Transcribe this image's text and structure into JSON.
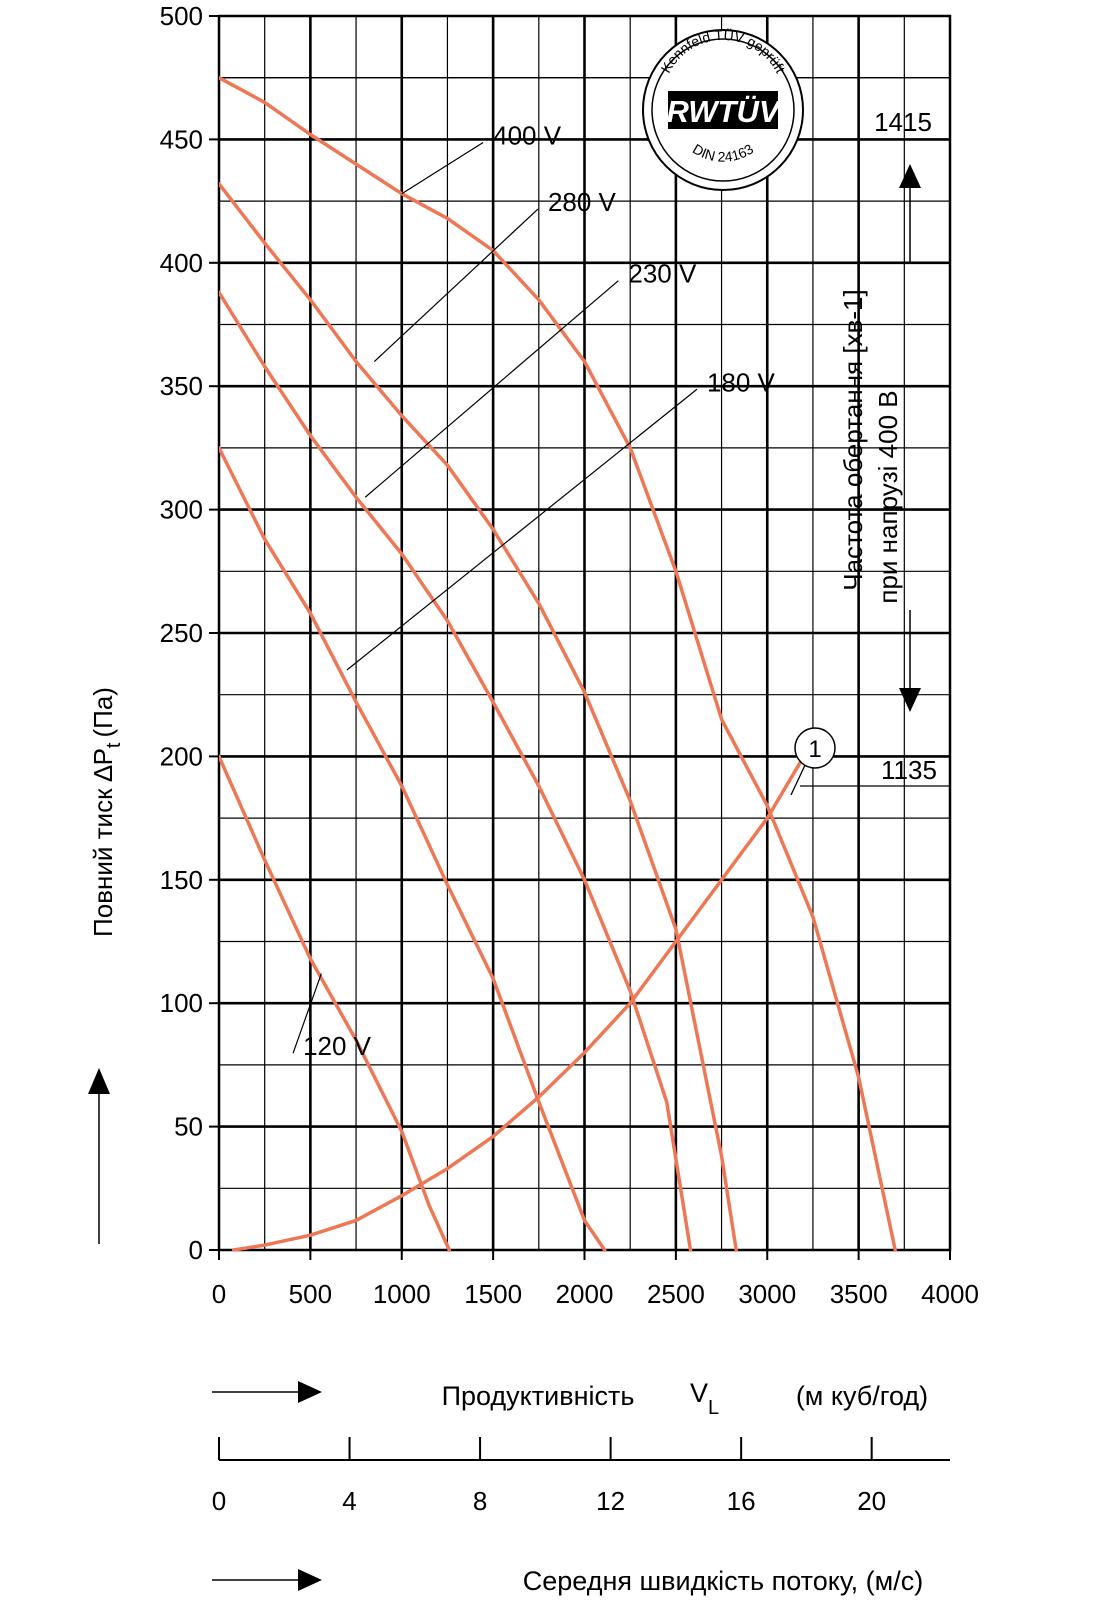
{
  "chart_data": {
    "type": "line",
    "xlabel_prefix": "Продуктивність",
    "xlabel_symbol": "V",
    "xlabel_subscript": "L",
    "xlabel_unit": "(м куб/год)",
    "ylabel": "Повний тиск ∆P",
    "ylabel_subscript": "t",
    "ylabel_unit": "(Па)",
    "xlim": [
      0,
      4000
    ],
    "ylim": [
      0,
      500
    ],
    "x_ticks": [
      "0",
      "500",
      "1000",
      "1500",
      "2000",
      "2500",
      "3000",
      "3500",
      "4000"
    ],
    "y_ticks": [
      "0",
      "50",
      "100",
      "150",
      "200",
      "250",
      "300",
      "350",
      "400",
      "450",
      "500"
    ],
    "grid": true,
    "right_axis_label_line1": "Частота обертання [хв-1]",
    "right_axis_label_line2": "при напрузі 400 В",
    "rpm_top": "1415",
    "rpm_bottom": "1135",
    "rpm_top_pressure": 475,
    "rpm_bottom_pressure": 188,
    "point_label": "1",
    "certification_badge": {
      "brand": "RWTÜV",
      "arc_top": "Kennfeld TÜV geprüft",
      "arc_bottom": "DIN 24163"
    },
    "series": [
      {
        "name": "400 V",
        "color": "#ee7755",
        "x": [
          0,
          250,
          500,
          750,
          1000,
          1250,
          1500,
          1750,
          2000,
          2250,
          2500,
          2750,
          3000,
          3250,
          3500,
          3700
        ],
        "y": [
          475,
          465,
          452,
          440,
          428,
          418,
          405,
          385,
          360,
          325,
          275,
          215,
          180,
          135,
          70,
          0
        ],
        "label_x": 1500,
        "label_y": 452,
        "anchor_x": 1000,
        "anchor_y": 428
      },
      {
        "name": "280 V",
        "color": "#ee7755",
        "x": [
          0,
          250,
          500,
          750,
          1000,
          1250,
          1500,
          1750,
          2000,
          2250,
          2500,
          2750,
          2830
        ],
        "y": [
          432,
          408,
          385,
          360,
          338,
          318,
          292,
          262,
          226,
          182,
          130,
          38,
          0
        ],
        "label_x": 1800,
        "label_y": 425,
        "anchor_x": 850,
        "anchor_y": 360
      },
      {
        "name": "230 V",
        "color": "#ee7755",
        "x": [
          0,
          250,
          500,
          750,
          1000,
          1250,
          1500,
          1750,
          2000,
          2250,
          2450,
          2580
        ],
        "y": [
          388,
          358,
          330,
          305,
          282,
          255,
          222,
          188,
          150,
          105,
          60,
          0
        ],
        "label_x": 2240,
        "label_y": 396,
        "anchor_x": 800,
        "anchor_y": 305
      },
      {
        "name": "180 V",
        "color": "#ee7755",
        "x": [
          0,
          250,
          500,
          750,
          1000,
          1250,
          1500,
          1750,
          2000,
          2110
        ],
        "y": [
          325,
          288,
          258,
          222,
          188,
          148,
          110,
          60,
          12,
          0
        ],
        "label_x": 2670,
        "label_y": 352,
        "anchor_x": 700,
        "anchor_y": 235
      },
      {
        "name": "120 V",
        "color": "#ee7755",
        "x": [
          0,
          250,
          500,
          750,
          1000,
          1150,
          1260
        ],
        "y": [
          200,
          158,
          118,
          85,
          48,
          18,
          0
        ],
        "label_x": 460,
        "label_y": 83,
        "anchor_x": 560,
        "anchor_y": 112
      },
      {
        "name": "",
        "color": "#ee7755",
        "x": [
          80,
          250,
          500,
          750,
          1000,
          1250,
          1500,
          1750,
          2000,
          2250,
          2500,
          2750,
          3000,
          3200
        ],
        "y": [
          0,
          2,
          6,
          12,
          22,
          33,
          46,
          62,
          80,
          100,
          125,
          150,
          175,
          200
        ]
      }
    ],
    "secondary_axis": {
      "label": "Середня швидкість потоку, (м/с)",
      "ticks": [
        "0",
        "4",
        "8",
        "12",
        "16",
        "20"
      ],
      "tick_values": [
        0,
        4,
        8,
        12,
        16,
        20
      ],
      "max": 22.4
    }
  }
}
